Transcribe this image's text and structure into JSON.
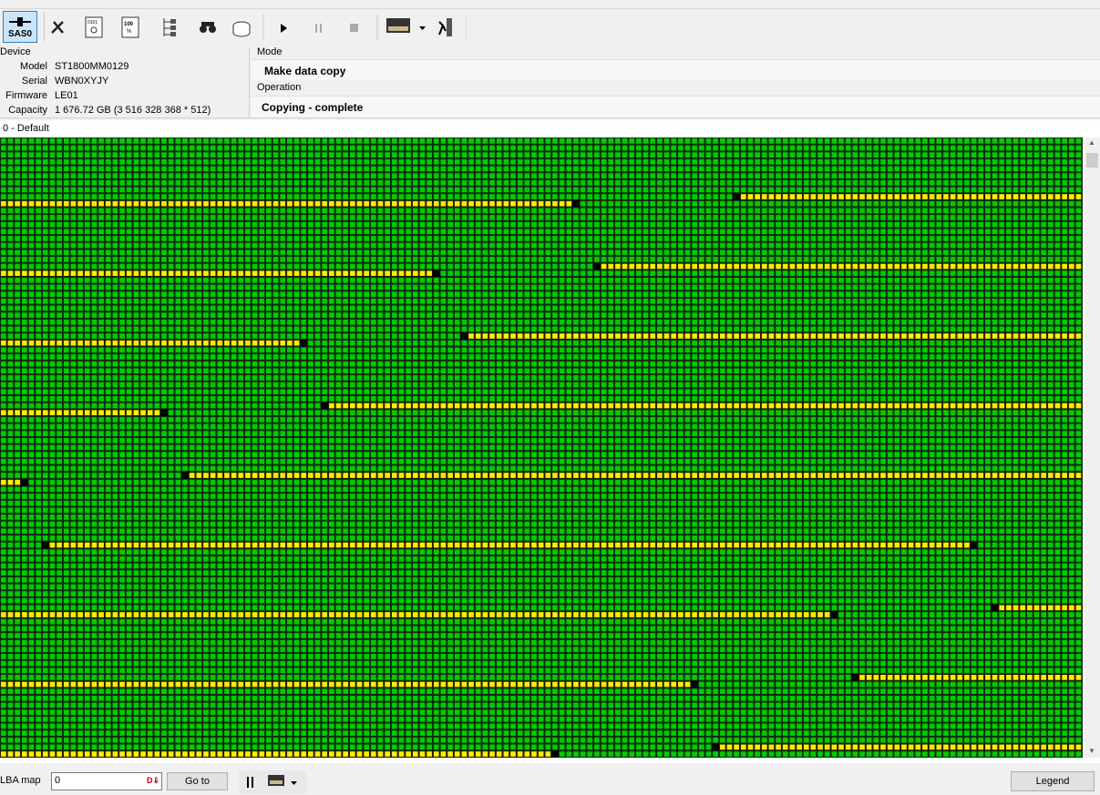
{
  "toolbar": {
    "device_button": "SAS0"
  },
  "device": {
    "title": "Device",
    "fields": [
      {
        "label": "Model",
        "value": "ST1800MM0129"
      },
      {
        "label": "Serial",
        "value": "WBN0XYJY"
      },
      {
        "label": "Firmware",
        "value": "LE01"
      },
      {
        "label": "Capacity",
        "value": "1 676.72 GB (3 516 328 368 * 512)"
      }
    ]
  },
  "mode": {
    "title": "Mode",
    "value": "Make data copy"
  },
  "operation": {
    "title": "Operation",
    "value": "Copying - complete"
  },
  "map": {
    "tab": "0 - Default"
  },
  "footer": {
    "lba_label": "LBA map",
    "lba_value": "0",
    "goto": "Go to",
    "legend": "Legend"
  }
}
